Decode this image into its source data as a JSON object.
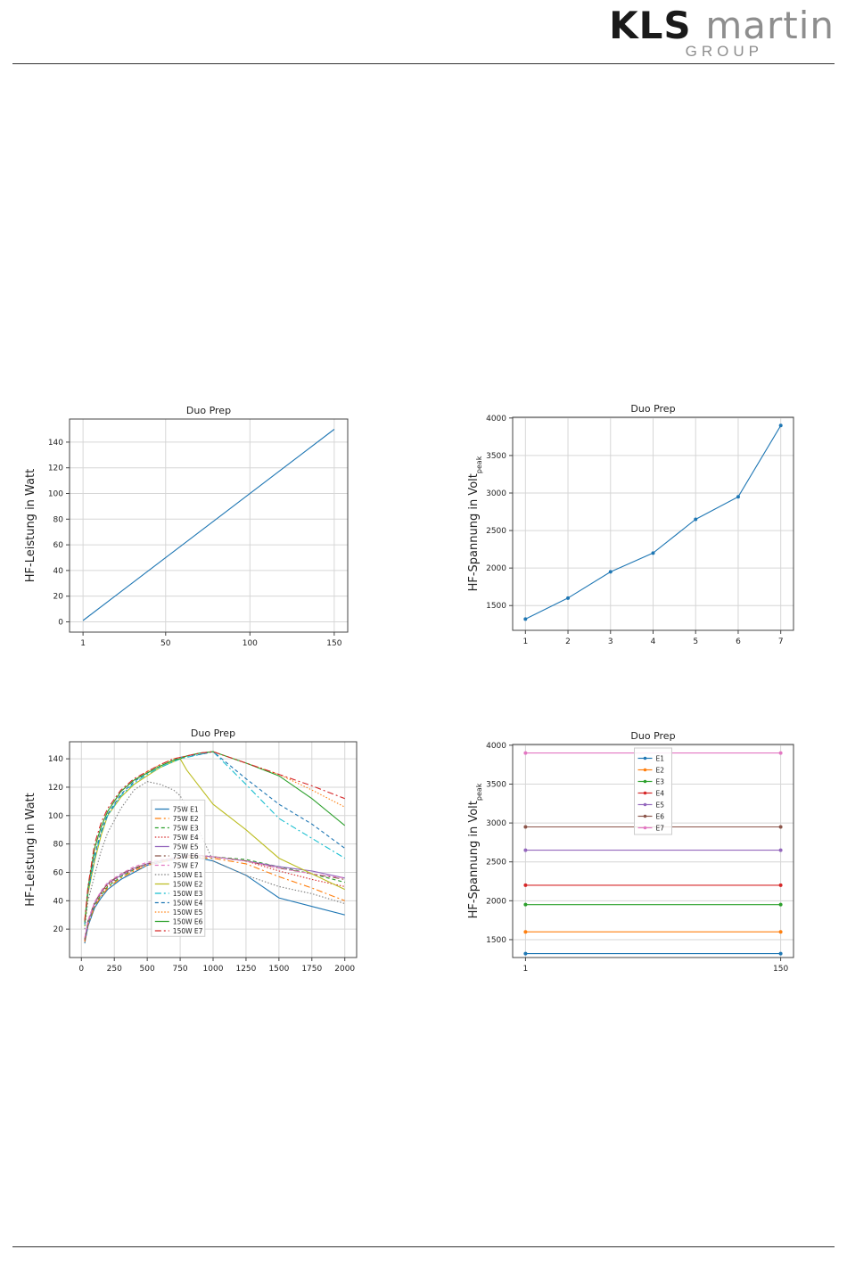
{
  "header": {
    "logo_primary": "KLS",
    "logo_secondary": "martin",
    "logo_sub": "GROUP"
  },
  "chart_data": [
    {
      "type": "line",
      "title": "Duo Prep",
      "xlabel": "",
      "ylabel": "HF-Leistung in Watt",
      "xlim": [
        -7,
        158
      ],
      "ylim": [
        -8,
        158
      ],
      "xticks": [
        1,
        50,
        100,
        150
      ],
      "yticks": [
        0,
        20,
        40,
        60,
        80,
        100,
        120,
        140
      ],
      "grid": true,
      "series": [
        {
          "x": [
            1,
            150
          ],
          "y": [
            1,
            150
          ],
          "color": "#1f77b4"
        }
      ]
    },
    {
      "type": "line",
      "title": "Duo Prep",
      "xlabel": "",
      "ylabel": "HF-Spannung in Volt",
      "ylabel_sub": "peak",
      "xlim": [
        0.7,
        7.3
      ],
      "ylim": [
        1170,
        4010
      ],
      "xticks": [
        1,
        2,
        3,
        4,
        5,
        6,
        7
      ],
      "yticks": [
        1500,
        2000,
        2500,
        3000,
        3500,
        4000
      ],
      "grid": true,
      "series": [
        {
          "x": [
            1,
            2,
            3,
            4,
            5,
            6,
            7
          ],
          "y": [
            1320,
            1600,
            1950,
            2200,
            2650,
            2950,
            3900
          ],
          "color": "#1f77b4",
          "markers": true
        }
      ]
    },
    {
      "type": "line",
      "title": "Duo Prep",
      "xlabel": "",
      "ylabel": "HF-Leistung in Watt",
      "xlim": [
        -90,
        2090
      ],
      "ylim": [
        0,
        152
      ],
      "xticks": [
        0,
        250,
        500,
        750,
        1000,
        1250,
        1500,
        1750,
        2000
      ],
      "yticks": [
        20,
        40,
        60,
        80,
        100,
        120,
        140
      ],
      "grid": true,
      "legend_position": "center",
      "x": [
        25,
        50,
        100,
        150,
        200,
        300,
        400,
        500,
        600,
        700,
        750,
        800,
        900,
        1000,
        1250,
        1500,
        1750,
        2000
      ],
      "series": [
        {
          "name": "75W E1",
          "color": "#1f77b4",
          "dash": "",
          "y": [
            10,
            22,
            35,
            42,
            48,
            55,
            60,
            65,
            67,
            69,
            70,
            71,
            70,
            68,
            58,
            42,
            36,
            30
          ]
        },
        {
          "name": "75W E2",
          "color": "#ff7f0e",
          "dash": "7,3,2,3",
          "y": [
            11,
            23,
            36,
            43,
            49,
            56,
            61,
            65,
            67,
            69,
            70,
            71,
            70,
            70,
            66,
            57,
            49,
            40
          ]
        },
        {
          "name": "75W E3",
          "color": "#2ca02c",
          "dash": "4,3",
          "y": [
            12,
            24,
            37,
            44,
            50,
            57,
            62,
            66,
            68,
            70,
            71,
            71,
            71,
            71,
            69,
            64,
            59,
            53
          ]
        },
        {
          "name": "75W E4",
          "color": "#d62728",
          "dash": "1.5,2",
          "y": [
            12,
            25,
            38,
            45,
            51,
            58,
            62,
            66,
            68,
            70,
            71,
            71,
            71,
            71,
            68,
            61,
            55,
            50
          ]
        },
        {
          "name": "75W E5",
          "color": "#9467bd",
          "dash": "",
          "y": [
            13,
            25,
            38,
            46,
            52,
            58,
            63,
            66,
            68,
            70,
            71,
            72,
            72,
            71,
            68,
            64,
            61,
            56
          ]
        },
        {
          "name": "75W E6",
          "color": "#8c564b",
          "dash": "7,3,2,3",
          "y": [
            13,
            26,
            39,
            46,
            52,
            59,
            63,
            66,
            68,
            70,
            71,
            72,
            72,
            71,
            68,
            63,
            59,
            55
          ]
        },
        {
          "name": "75W E7",
          "color": "#e377c2",
          "dash": "4,3",
          "y": [
            14,
            26,
            39,
            47,
            53,
            59,
            64,
            67,
            69,
            70,
            71,
            72,
            72,
            71,
            68,
            63,
            59,
            56
          ]
        },
        {
          "name": "150W E1",
          "color": "#7f7f7f",
          "dash": "1.5,2",
          "y": [
            20,
            40,
            58,
            75,
            88,
            105,
            118,
            124,
            122,
            118,
            114,
            105,
            88,
            68,
            58,
            50,
            45,
            38
          ]
        },
        {
          "name": "150W E2",
          "color": "#bcbd22",
          "dash": "",
          "y": [
            22,
            45,
            68,
            86,
            100,
            113,
            122,
            128,
            134,
            138,
            140,
            132,
            120,
            108,
            90,
            70,
            59,
            48
          ]
        },
        {
          "name": "150W E3",
          "color": "#17becf",
          "dash": "7,3,2,3",
          "y": [
            23,
            46,
            70,
            88,
            100,
            114,
            123,
            129,
            134,
            138,
            140,
            141,
            143,
            145,
            122,
            98,
            84,
            70
          ]
        },
        {
          "name": "150W E4",
          "color": "#1f77b4",
          "dash": "4,3",
          "y": [
            24,
            47,
            72,
            89,
            101,
            115,
            124,
            130,
            135,
            139,
            141,
            142,
            143,
            145,
            126,
            108,
            94,
            77
          ]
        },
        {
          "name": "150W E5",
          "color": "#ff7f0e",
          "dash": "1.5,2",
          "y": [
            25,
            48,
            76,
            92,
            103,
            117,
            125,
            131,
            136,
            140,
            141,
            142,
            144,
            145,
            137,
            129,
            118,
            106
          ]
        },
        {
          "name": "150W E6",
          "color": "#2ca02c",
          "dash": "",
          "y": [
            25,
            49,
            77,
            92,
            103,
            117,
            125,
            130,
            135,
            139,
            140,
            142,
            144,
            145,
            137,
            128,
            112,
            93
          ]
        },
        {
          "name": "150W E7",
          "color": "#d62728",
          "dash": "7,3,2,3",
          "y": [
            26,
            50,
            80,
            95,
            105,
            118,
            126,
            131,
            136,
            140,
            141,
            142,
            144,
            145,
            137,
            129,
            121,
            112
          ]
        }
      ]
    },
    {
      "type": "line",
      "title": "Duo Prep",
      "xlabel": "",
      "ylabel": "HF-Spannung in Volt",
      "ylabel_sub": "peak",
      "xlim": [
        -6.5,
        157.5
      ],
      "ylim": [
        1270,
        4010
      ],
      "xticks": [
        1,
        150
      ],
      "yticks": [
        1500,
        2000,
        2500,
        3000,
        3500,
        4000
      ],
      "grid": true,
      "legend_position": "upper center",
      "x": [
        1,
        150
      ],
      "series": [
        {
          "name": "E1",
          "color": "#1f77b4",
          "y": [
            1320,
            1320
          ],
          "markers": true
        },
        {
          "name": "E2",
          "color": "#ff7f0e",
          "y": [
            1600,
            1600
          ],
          "markers": true
        },
        {
          "name": "E3",
          "color": "#2ca02c",
          "y": [
            1950,
            1950
          ],
          "markers": true
        },
        {
          "name": "E4",
          "color": "#d62728",
          "y": [
            2200,
            2200
          ],
          "markers": true
        },
        {
          "name": "E5",
          "color": "#9467bd",
          "y": [
            2650,
            2650
          ],
          "markers": true
        },
        {
          "name": "E6",
          "color": "#8c564b",
          "y": [
            2950,
            2950
          ],
          "markers": true
        },
        {
          "name": "E7",
          "color": "#e377c2",
          "y": [
            3900,
            3900
          ],
          "markers": true
        }
      ]
    }
  ]
}
